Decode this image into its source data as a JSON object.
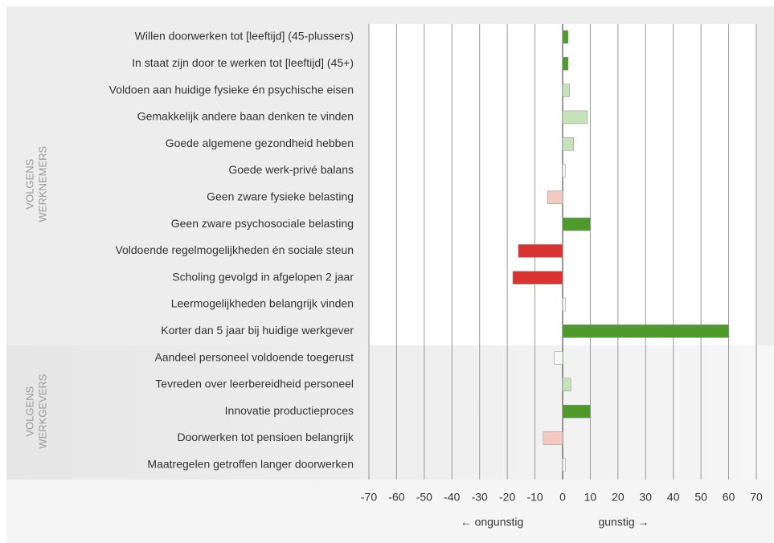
{
  "chart_data": {
    "type": "bar",
    "orientation": "horizontal",
    "groups": [
      {
        "name": [
          "VOLGENS",
          "WERKNEMERS"
        ],
        "categories": [
          "Willen doorwerken tot [leeftijd] (45-plussers)",
          "In staat zijn door te werken tot [leeftijd] (45+)",
          "Voldoen aan huidige fysieke én psychische eisen",
          "Gemakkelijk andere baan denken te vinden",
          "Goede algemene gezondheid hebben",
          "Goede werk-privé balans",
          "Geen zware fysieke belasting",
          "Geen zware psychosociale belasting",
          "Voldoende regelmogelijkheden én sociale steun",
          "Scholing gevolgd in afgelopen 2 jaar",
          "Leermogelijkheden belangrijk vinden",
          "Korter dan 5 jaar bij huidige werkgever"
        ],
        "values": [
          2,
          2,
          2.5,
          9,
          4,
          1,
          -5.5,
          10,
          -16,
          -18,
          1,
          60
        ],
        "colors": [
          "#4e9a2a",
          "#4e9a2a",
          "#c5e3b8",
          "#c5e3b8",
          "#c5e3b8",
          "#f4f9f1",
          "#f4c9bf",
          "#4e9a2a",
          "#d93432",
          "#d93432",
          "#f4f9f1",
          "#4e9a2a"
        ]
      },
      {
        "name": [
          "VOLGENS",
          "WERKGEVERS"
        ],
        "categories": [
          "Aandeel personeel voldoende toegerust",
          "Tevreden over leerbereidheid personeel",
          "Innovatie productieproces",
          "Doorwerken tot pensioen belangrijk",
          "Maatregelen getroffen langer doorwerken"
        ],
        "values": [
          -3,
          3,
          10,
          -7,
          1
        ],
        "colors": [
          "#f4f9f1",
          "#c5e3b8",
          "#4e9a2a",
          "#f4c9bf",
          "#f4f9f1"
        ]
      }
    ],
    "xlim": [
      -70,
      70
    ],
    "xticks": [
      -70,
      -60,
      -50,
      -40,
      -30,
      -20,
      -10,
      0,
      10,
      20,
      30,
      40,
      50,
      60,
      70
    ],
    "grid": true,
    "annotations": [
      "← ongunstig",
      "gunstig →"
    ]
  }
}
